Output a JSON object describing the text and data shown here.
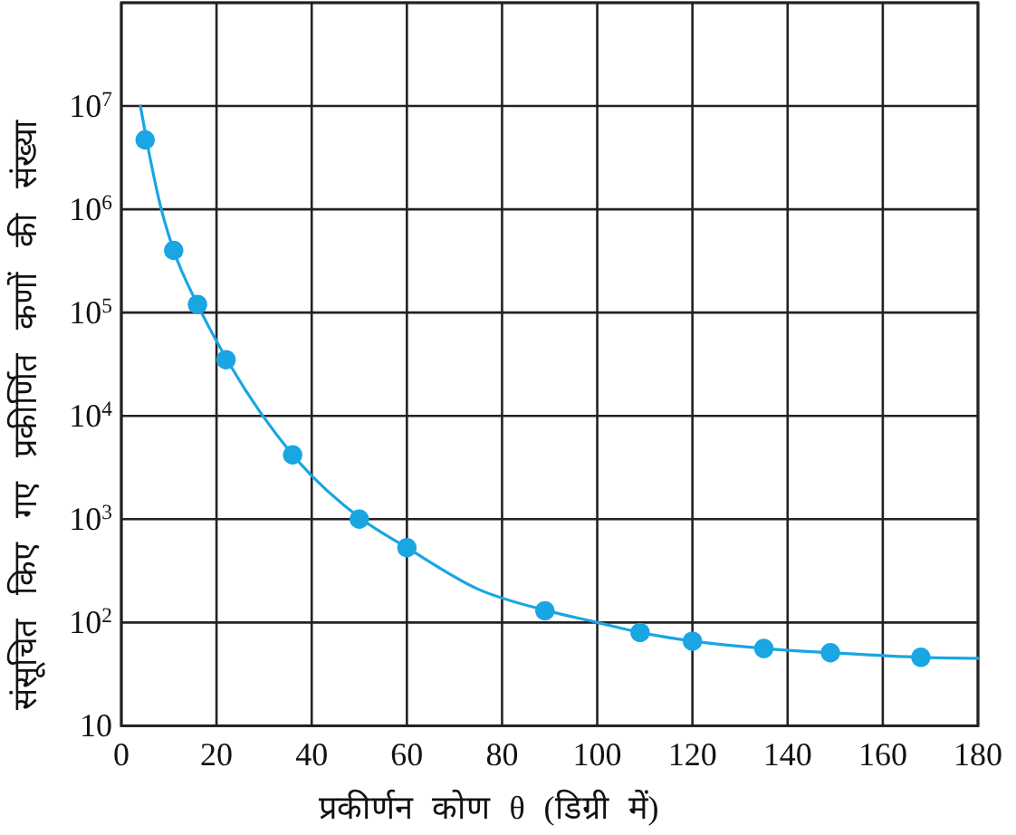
{
  "chart_data": {
    "type": "scatter",
    "xlabel": "प्रकीर्णन कोण θ (डिग्री में)",
    "ylabel": "संसूचित किए गए प्रकीर्णित कणों की संख्या",
    "xlim": [
      0,
      180
    ],
    "xticks": [
      0,
      20,
      40,
      60,
      80,
      100,
      120,
      140,
      160,
      180
    ],
    "ylim": [
      10,
      100000000
    ],
    "yticks": [
      10,
      {
        "value": 100,
        "label": "10$^{2}$"
      },
      {
        "value": 1000,
        "label": "10$^{3}$"
      },
      {
        "value": 10000,
        "label": "10$^{4}$"
      },
      {
        "value": 100000,
        "label": "10$^{5}$"
      },
      {
        "value": 1000000,
        "label": "10$^{6}$"
      },
      {
        "value": 10000000,
        "label": "10$^{7}$"
      },
      {
        "value": 100000000,
        "label": null
      }
    ],
    "log": "y",
    "grid": true,
    "marker": "circle",
    "series": [
      {
        "type": "line",
        "color": "#1aa5e3",
        "marker": "none",
        "line_style": "solid",
        "x": [
          4,
          5.3,
          8.4,
          11,
          16,
          22.2,
          36,
          50.5,
          60,
          75,
          89.5,
          100,
          109,
          120,
          135,
          149,
          168,
          180
        ],
        "values": [
          10000000,
          4700000,
          1000000,
          400000,
          120000,
          35000,
          4200,
          1000,
          530,
          210,
          130,
          100,
          80,
          66,
          56,
          51,
          46,
          45
        ]
      },
      {
        "color": "#1aa5e3",
        "x": [
          5,
          11,
          16,
          22,
          36,
          50,
          60,
          89,
          109,
          120,
          135,
          149,
          168
        ],
        "values": [
          4700000,
          400000,
          120000,
          35000,
          4200,
          1000,
          530,
          130,
          80,
          66,
          56,
          51,
          46
        ]
      }
    ]
  }
}
